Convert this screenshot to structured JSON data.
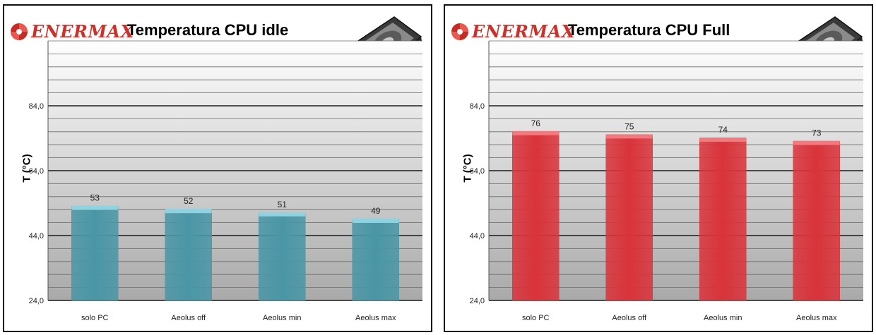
{
  "brand": "ENERMAX",
  "chart_data": [
    {
      "type": "bar",
      "title": "Temperatura CPU idle",
      "xlabel": "",
      "ylabel": "T (°C)",
      "categories": [
        "solo PC",
        "Aeolus off",
        "Aeolus min",
        "Aeolus max"
      ],
      "values": [
        53,
        52,
        51,
        49
      ],
      "value_labels": [
        "53",
        "52",
        "51",
        "49"
      ],
      "ylim": [
        24,
        104
      ],
      "yticks": [
        "24,0",
        "44,0",
        "64,0",
        "84,0"
      ],
      "ytick_values": [
        24,
        44,
        64,
        84
      ],
      "grid": true,
      "bar_color": "#4a96a6",
      "bar_top_color": "#8fd2e0"
    },
    {
      "type": "bar",
      "title": "Temperatura CPU Full",
      "xlabel": "",
      "ylabel": "T (°C)",
      "categories": [
        "solo PC",
        "Aeolus off",
        "Aeolus min",
        "Aeolus max"
      ],
      "values": [
        76,
        75,
        74,
        73
      ],
      "value_labels": [
        "76",
        "75",
        "74",
        "73"
      ],
      "ylim": [
        24,
        104
      ],
      "yticks": [
        "24,0",
        "44,0",
        "64,0",
        "84,0"
      ],
      "ytick_values": [
        24,
        44,
        64,
        84
      ],
      "grid": true,
      "bar_color": "#d9333a",
      "bar_top_color": "#f27a7e"
    }
  ]
}
